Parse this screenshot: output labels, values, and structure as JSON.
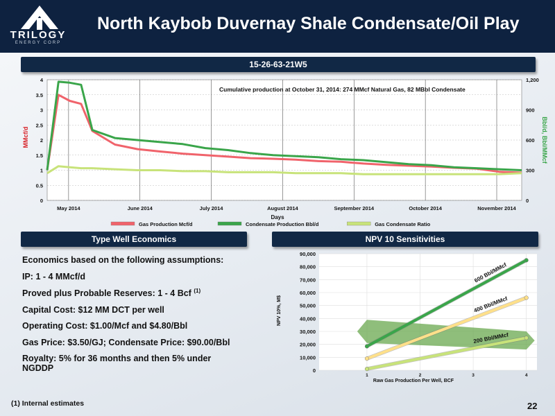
{
  "header": {
    "title": "North Kaybob Duvernay Shale Condensate/Oil Play",
    "logo_text": "TRILOGY",
    "logo_subtext": "ENERGY CORP"
  },
  "production": {
    "heading": "15-26-63-21W5",
    "annotation": "Cumulative production at October 31, 2014: 274 MMcf Natural Gas, 82 MBbl Condensate",
    "chart_data": {
      "type": "line",
      "title": "",
      "xlabel": "Days",
      "ylabel": "MMcf/d",
      "y2label": "Bbl/d, Bbl/MMcf",
      "ylim": [
        0,
        4
      ],
      "y2lim": [
        0,
        1200
      ],
      "yticks": [
        "0",
        "0.5",
        "1",
        "1.5",
        "2",
        "2.5",
        "3",
        "3.5",
        "4"
      ],
      "y2ticks": [
        "0",
        "300",
        "600",
        "900",
        "1,200"
      ],
      "xticks": [
        "May 2014",
        "June 2014",
        "July 2014",
        "August 2014",
        "September 2014",
        "October 2014",
        "November 2014"
      ],
      "x_days": [
        0,
        5,
        10,
        15,
        20,
        30,
        40,
        50,
        60,
        70,
        80,
        90,
        100,
        110,
        120,
        130,
        140,
        150,
        160,
        170,
        180,
        190,
        200,
        210
      ],
      "series": [
        {
          "name": "Gas Production Mcf/d",
          "axis": "left",
          "color": "#f0636b",
          "values": [
            1.0,
            3.5,
            3.3,
            3.2,
            2.3,
            1.85,
            1.7,
            1.62,
            1.55,
            1.5,
            1.45,
            1.4,
            1.38,
            1.35,
            1.3,
            1.28,
            1.22,
            1.18,
            1.15,
            1.12,
            1.08,
            1.05,
            0.95,
            0.92
          ]
        },
        {
          "name": "Condensate Production Bbl/d",
          "axis": "right",
          "color": "#3aa54a",
          "values": [
            300,
            1180,
            1170,
            1150,
            700,
            620,
            600,
            580,
            560,
            520,
            500,
            470,
            450,
            440,
            430,
            410,
            400,
            380,
            360,
            350,
            330,
            320,
            310,
            300
          ]
        },
        {
          "name": "Gas Condensate Ratio",
          "axis": "right",
          "color": "#c8e37a",
          "values": [
            270,
            340,
            330,
            320,
            320,
            310,
            300,
            300,
            290,
            290,
            280,
            280,
            280,
            270,
            270,
            270,
            260,
            260,
            260,
            260,
            260,
            260,
            260,
            270
          ]
        }
      ]
    }
  },
  "economics": {
    "heading": "Type Well Economics",
    "lines": [
      "Economics based on the following assumptions:",
      "IP: 1 - 4 MMcf/d",
      "Proved plus Probable Reserves: 1 - 4 Bcf",
      "Capital Cost: $12 MM DCT per well",
      "Operating Cost: $1.00/Mcf and $4.80/Bbl",
      "Gas Price: $3.50/GJ; Condensate Price: $90.00/Bbl",
      "Royalty: 5% for 36 months and then 5% under",
      "NGDDP"
    ],
    "reserves_note": "(1)"
  },
  "npv": {
    "heading": "NPV 10 Sensitivities",
    "chart_data": {
      "type": "line",
      "title": "",
      "xlabel": "Raw Gas Production Per Well, BCF",
      "ylabel": "NPV 10%, M$",
      "xticks": [
        "1",
        "2",
        "3",
        "4"
      ],
      "yticks": [
        "0",
        "10,000",
        "20,000",
        "30,000",
        "40,000",
        "50,000",
        "60,000",
        "70,000",
        "80,000",
        "90,000"
      ],
      "xlim": [
        0.1,
        4.2
      ],
      "ylim": [
        0,
        90000
      ],
      "x": [
        1,
        4
      ],
      "series": [
        {
          "name": "600 Bbl/MMcf",
          "color": "#3aa54a",
          "values": [
            18500,
            85000
          ]
        },
        {
          "name": "400 Bbl/MMcf",
          "color": "#ffe08a",
          "values": [
            9000,
            56000
          ]
        },
        {
          "name": "200 Bbl/MMcf",
          "color": "#c8e37a",
          "values": [
            1000,
            25000
          ]
        }
      ],
      "band": {
        "color": "#6aa84f",
        "x": [
          1,
          4
        ],
        "upper": [
          39000,
          30000
        ],
        "lower": [
          21000,
          16000
        ]
      }
    }
  },
  "footnote": "(1) Internal estimates",
  "page_number": "22"
}
